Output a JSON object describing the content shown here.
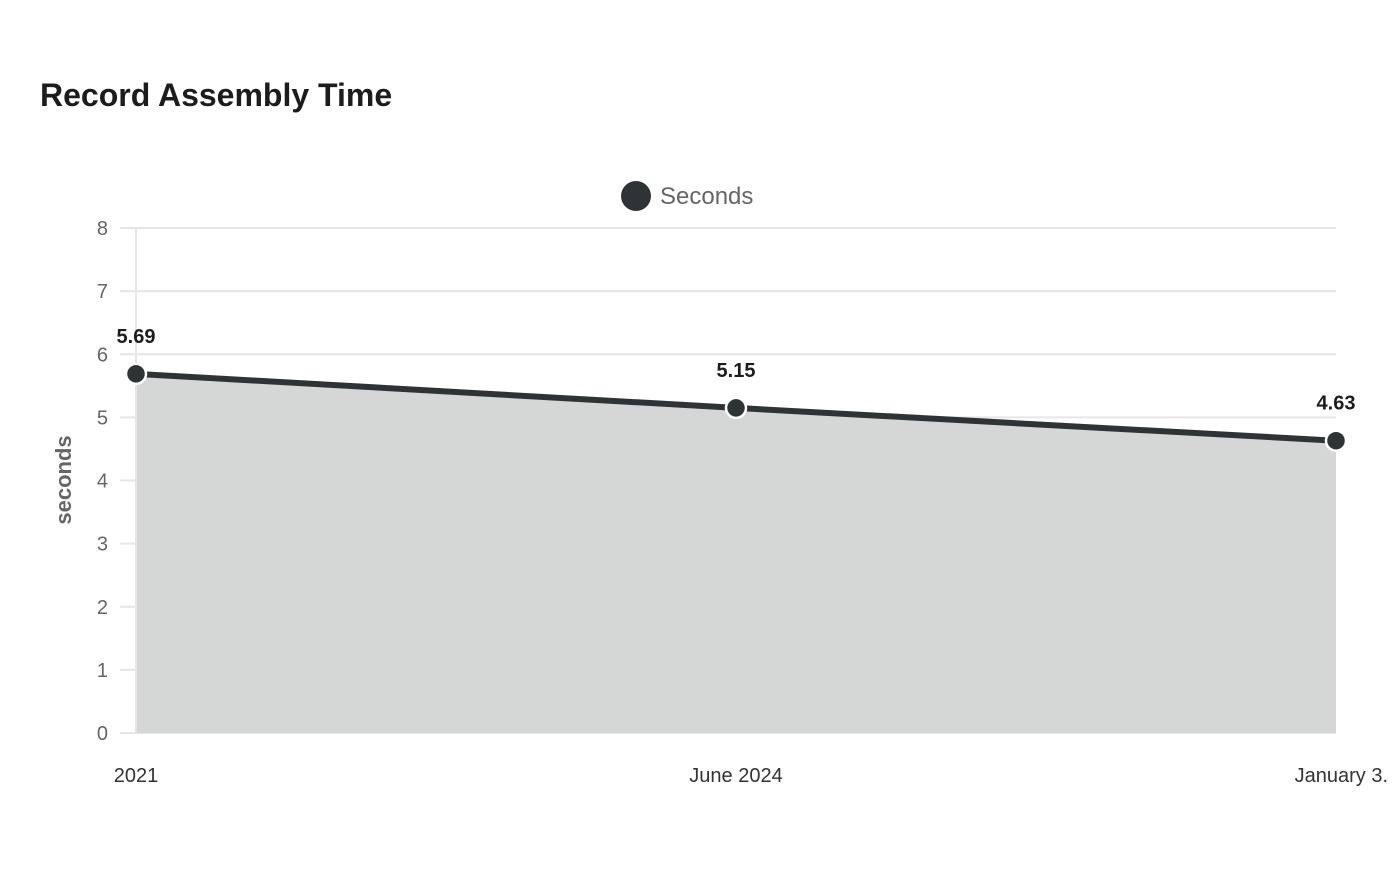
{
  "chart_data": {
    "type": "area",
    "title": "Record Assembly Time",
    "ylabel": "seconds",
    "xlabel": "",
    "categories": [
      "2021",
      "June 2024",
      "January 3."
    ],
    "series": [
      {
        "name": "Seconds",
        "values": [
          5.69,
          5.15,
          4.63
        ]
      }
    ],
    "data_labels": [
      "5.69",
      "5.15",
      "4.63"
    ],
    "ylim": [
      0,
      8
    ],
    "yticks": [
      "0",
      "1",
      "2",
      "3",
      "4",
      "5",
      "6",
      "7",
      "8"
    ],
    "grid": true,
    "legend": "top-center",
    "colors": {
      "line": "#2e3436",
      "area": "#d5d6d6",
      "grid": "#e6e6e6",
      "marker_stroke": "#ffffff"
    }
  }
}
